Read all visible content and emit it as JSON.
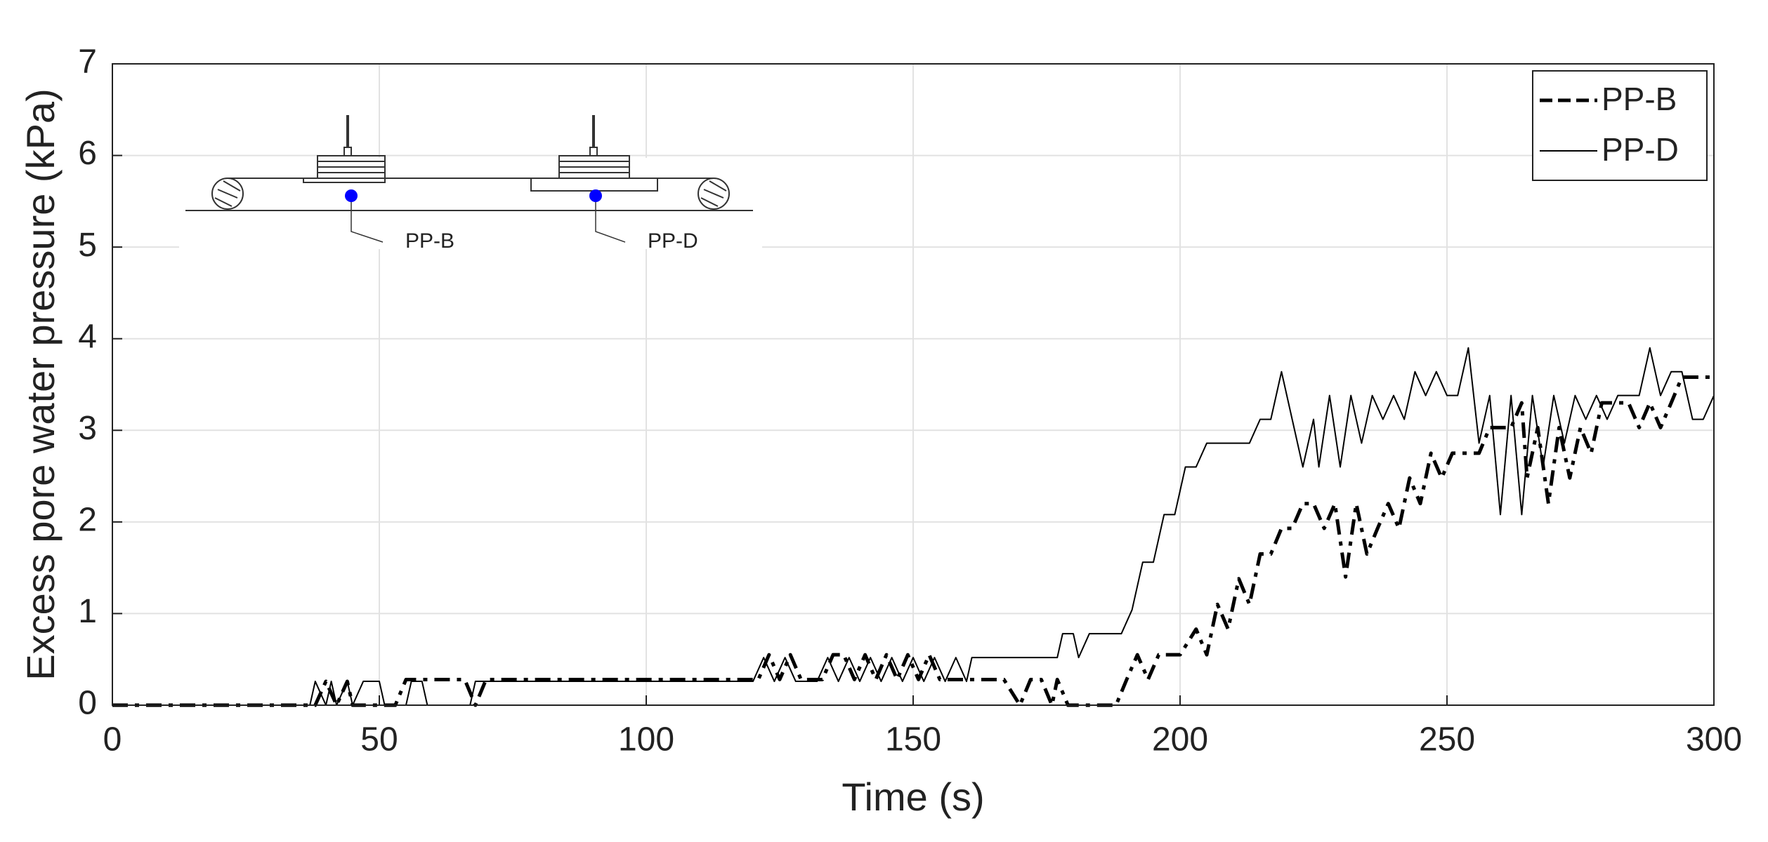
{
  "chart_data": {
    "type": "line",
    "xlabel": "Time (s)",
    "ylabel": "Excess pore water pressure (kPa)",
    "xlim": [
      0,
      300
    ],
    "xticks": [
      0,
      50,
      100,
      150,
      200,
      250,
      300
    ],
    "ylim": [
      0,
      7
    ],
    "yticks": [
      0,
      1,
      2,
      3,
      4,
      5,
      6,
      7
    ],
    "grid": true,
    "legend": "upper right",
    "series": [
      {
        "name": "PP-B",
        "color": "#000000",
        "linestyle": "dashdot",
        "x": [
          0,
          38,
          40,
          42,
          44,
          45,
          53,
          55,
          66,
          68,
          70,
          121,
          123,
          125,
          127,
          129,
          133,
          135,
          137,
          139,
          141,
          143,
          145,
          147,
          149,
          151,
          153,
          155,
          167,
          170,
          172,
          174,
          176,
          177,
          179,
          188,
          190,
          192,
          194,
          196,
          198,
          200,
          203,
          205,
          207,
          209,
          211,
          213,
          215,
          217,
          219,
          221,
          223,
          225,
          227,
          229,
          231,
          233,
          235,
          237,
          239,
          241,
          243,
          245,
          247,
          249,
          251,
          256,
          258,
          262,
          264,
          265,
          267,
          269,
          271,
          273,
          275,
          277,
          279,
          284,
          286,
          288,
          290,
          292,
          294,
          300
        ],
        "values": [
          0,
          0,
          0.26,
          0,
          0.26,
          0,
          0,
          0.28,
          0.28,
          0,
          0.28,
          0.28,
          0.55,
          0.28,
          0.55,
          0.28,
          0.28,
          0.55,
          0.55,
          0.28,
          0.55,
          0.28,
          0.55,
          0.28,
          0.55,
          0.28,
          0.55,
          0.28,
          0.28,
          0,
          0.28,
          0.28,
          0,
          0.28,
          0,
          0,
          0.28,
          0.55,
          0.28,
          0.55,
          0.55,
          0.55,
          0.83,
          0.55,
          1.1,
          0.83,
          1.38,
          1.1,
          1.65,
          1.65,
          1.93,
          1.93,
          2.2,
          2.2,
          1.93,
          2.2,
          1.4,
          2.2,
          1.65,
          1.93,
          2.2,
          1.93,
          2.48,
          2.2,
          2.75,
          2.48,
          2.75,
          2.75,
          3.03,
          3.03,
          3.3,
          2.48,
          3.03,
          2.2,
          3.03,
          2.48,
          3.03,
          2.75,
          3.3,
          3.3,
          3.03,
          3.3,
          3.03,
          3.3,
          3.58,
          3.58
        ]
      },
      {
        "name": "PP-D",
        "color": "#000000",
        "linestyle": "solid",
        "x": [
          0,
          37,
          38,
          40,
          41,
          42,
          44,
          45,
          47,
          50,
          51,
          55,
          56,
          58,
          59,
          67,
          68,
          120,
          122,
          124,
          126,
          128,
          132,
          134,
          136,
          138,
          140,
          142,
          144,
          146,
          148,
          150,
          152,
          154,
          156,
          158,
          160,
          161,
          177,
          178,
          180,
          181,
          183,
          189,
          191,
          193,
          195,
          197,
          199,
          201,
          203,
          205,
          213,
          215,
          217,
          219,
          221,
          223,
          225,
          226,
          228,
          230,
          232,
          234,
          236,
          238,
          240,
          242,
          244,
          246,
          248,
          250,
          252,
          254,
          256,
          258,
          260,
          262,
          264,
          266,
          268,
          270,
          272,
          274,
          276,
          278,
          280,
          282,
          286,
          288,
          290,
          292,
          294,
          296,
          298,
          300
        ],
        "values": [
          0,
          0,
          0.26,
          0,
          0.26,
          0,
          0.26,
          0,
          0.26,
          0.26,
          0,
          0,
          0.26,
          0.26,
          0,
          0,
          0.26,
          0.26,
          0.52,
          0.26,
          0.52,
          0.26,
          0.26,
          0.52,
          0.26,
          0.52,
          0.26,
          0.52,
          0.26,
          0.52,
          0.26,
          0.52,
          0.26,
          0.52,
          0.26,
          0.52,
          0.26,
          0.52,
          0.52,
          0.78,
          0.78,
          0.52,
          0.78,
          0.78,
          1.04,
          1.56,
          1.56,
          2.08,
          2.08,
          2.6,
          2.6,
          2.86,
          2.86,
          3.12,
          3.12,
          3.64,
          3.12,
          2.6,
          3.12,
          2.6,
          3.38,
          2.6,
          3.38,
          2.86,
          3.38,
          3.12,
          3.38,
          3.12,
          3.64,
          3.38,
          3.64,
          3.38,
          3.38,
          3.9,
          2.86,
          3.38,
          2.08,
          3.38,
          2.08,
          3.38,
          2.6,
          3.38,
          2.86,
          3.38,
          3.12,
          3.38,
          3.12,
          3.38,
          3.38,
          3.9,
          3.38,
          3.64,
          3.64,
          3.12,
          3.12,
          3.38
        ]
      }
    ]
  },
  "inset": {
    "labels": [
      "PP-B",
      "PP-D"
    ]
  }
}
